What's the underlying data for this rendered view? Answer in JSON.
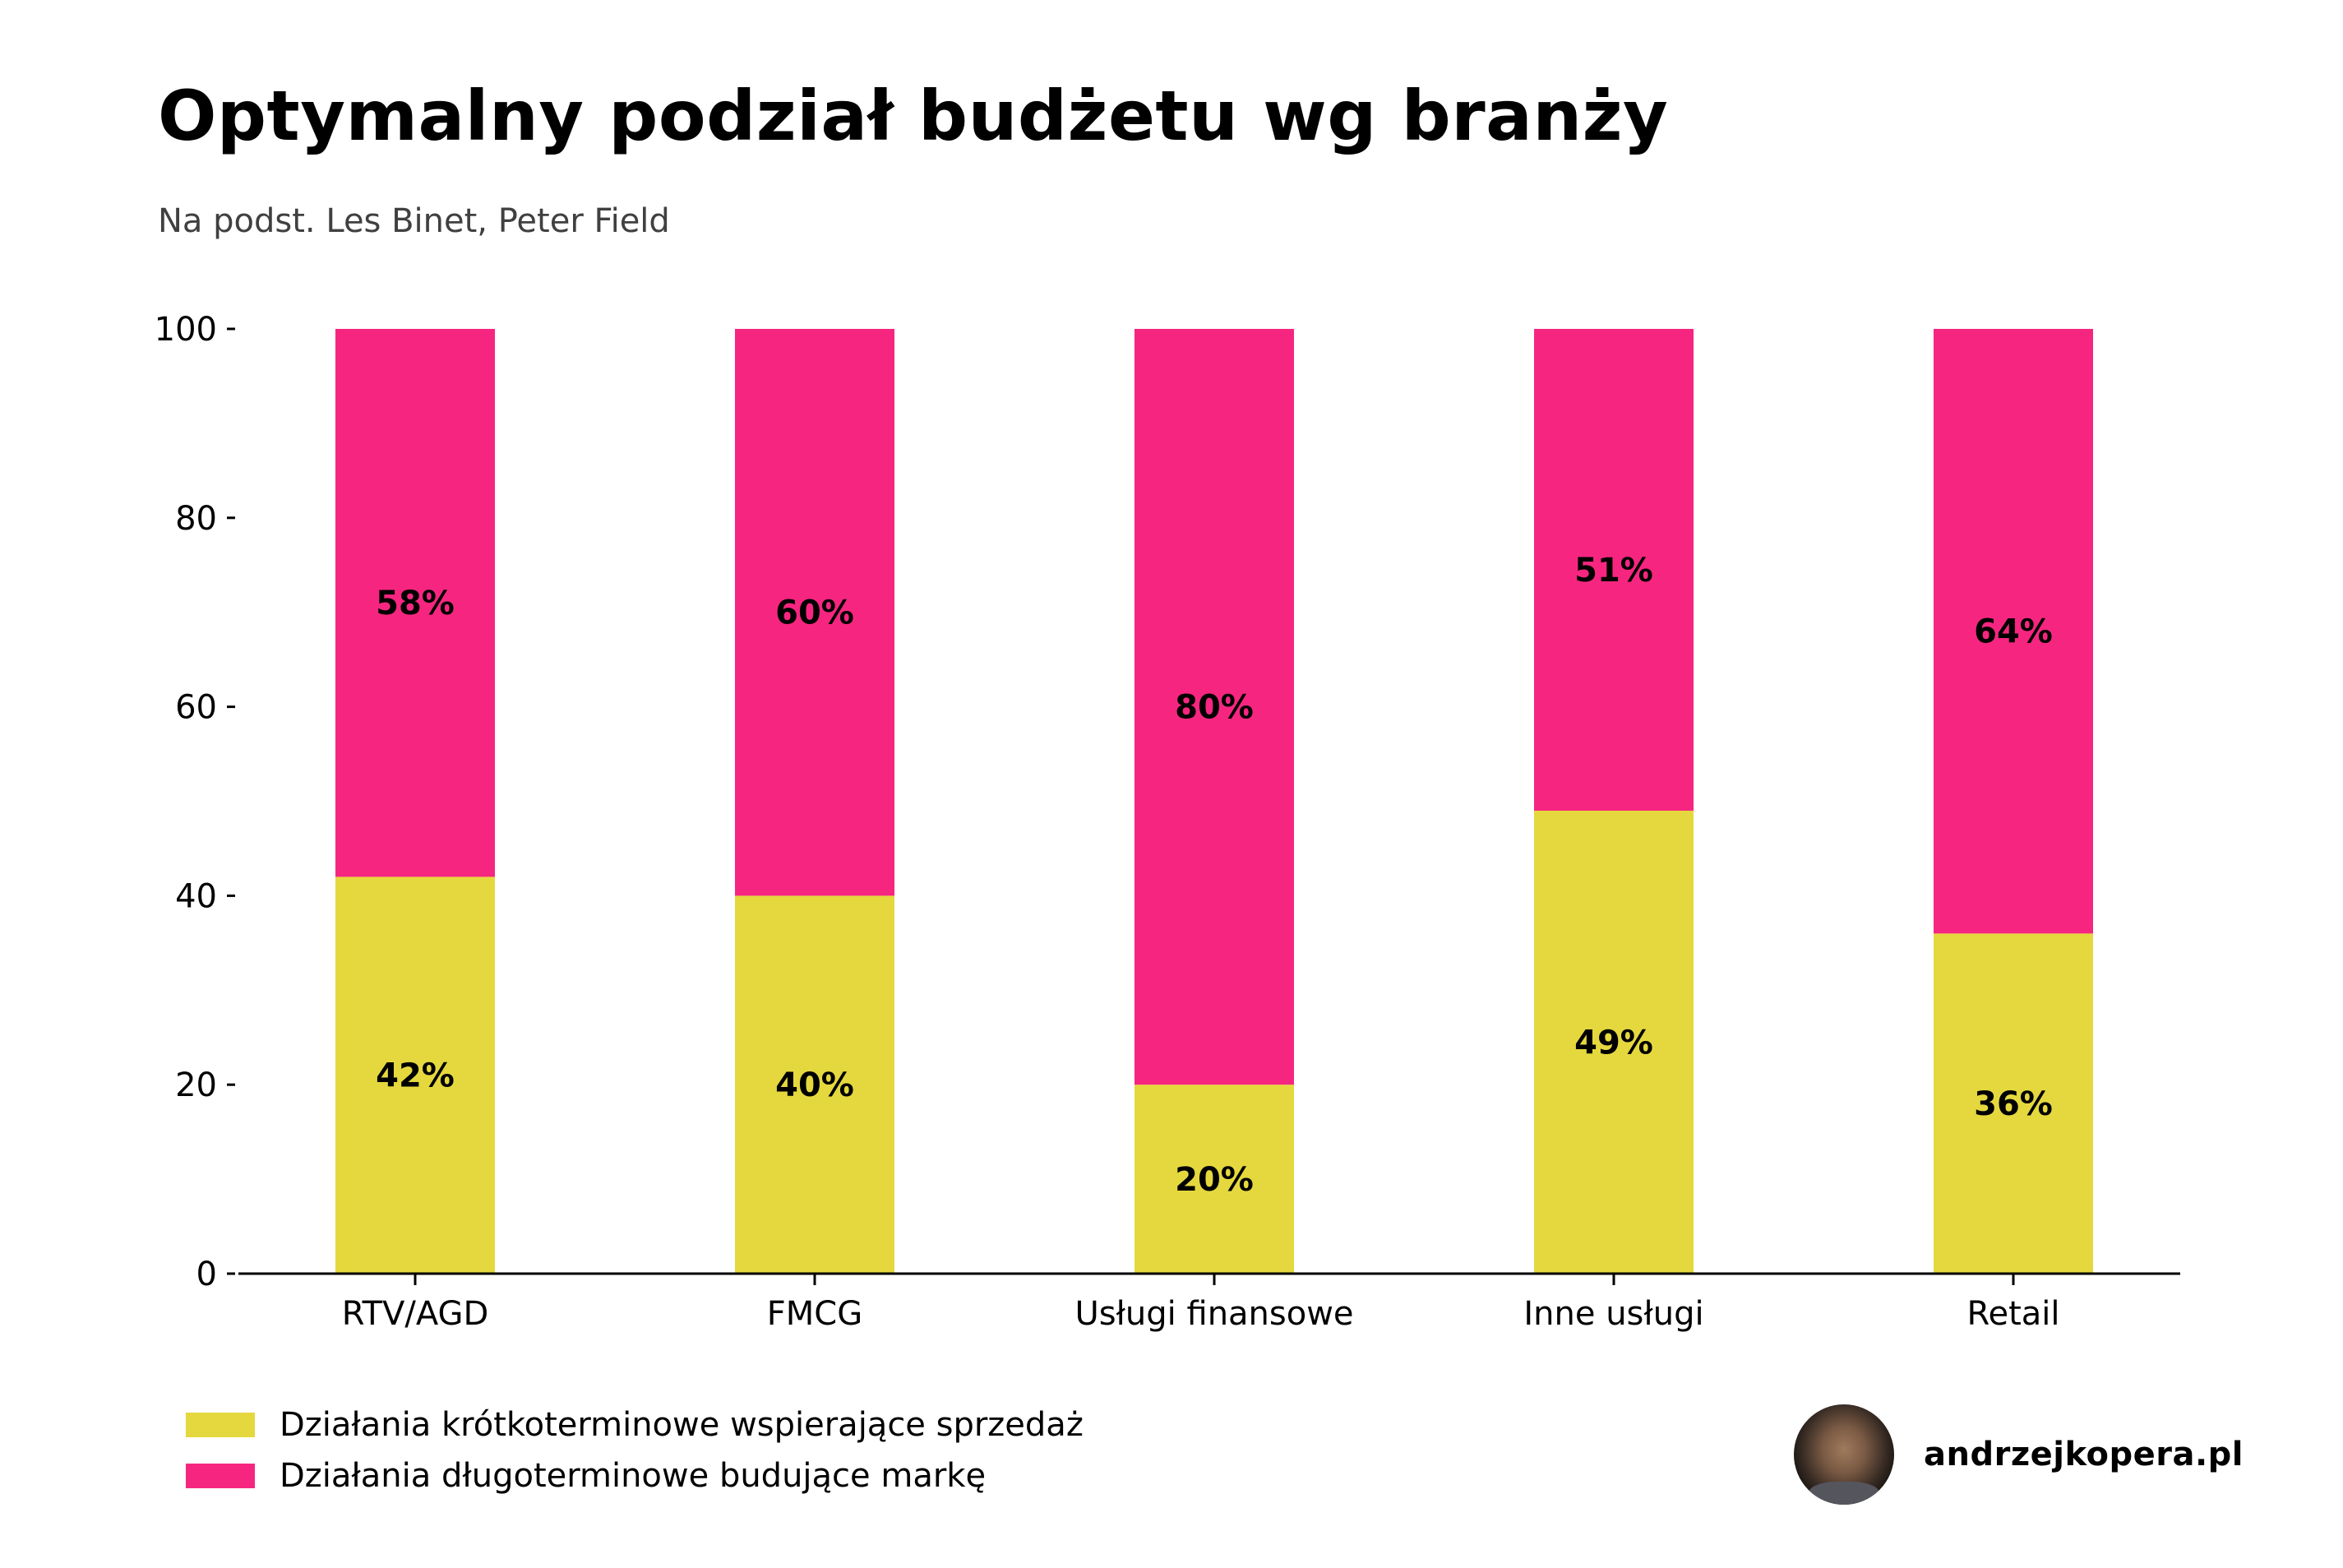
{
  "header": {
    "title": "Optymalny podział budżetu wg branży",
    "subtitle": "Na podst. Les Binet, Peter Field"
  },
  "colors": {
    "short_term": "#E5D83E",
    "long_term": "#F62680"
  },
  "legend": [
    {
      "label": "Działania krótkoterminowe wspierające sprzedaż",
      "series": "short_term"
    },
    {
      "label": "Działania długoterminowe budujące markę",
      "series": "long_term"
    }
  ],
  "brand": {
    "avatar_icon": "author-photo",
    "name": "andrzejkopera.pl"
  },
  "chart_data": {
    "type": "bar",
    "stacked": true,
    "title": "Optymalny podział budżetu wg branży",
    "subtitle": "Na podst. Les Binet, Peter Field",
    "xlabel": "",
    "ylabel": "",
    "ylim": [
      0,
      100
    ],
    "yticks": [
      0,
      20,
      40,
      60,
      80,
      100
    ],
    "grid": false,
    "legend_position": "bottom-left",
    "categories": [
      "RTV/AGD",
      "FMCG",
      "Usługi finansowe",
      "Inne usługi",
      "Retail"
    ],
    "series": [
      {
        "name": "Działania krótkoterminowe wspierające sprzedaż",
        "color": "#E5D83E",
        "values": [
          42,
          40,
          20,
          49,
          36
        ],
        "labels": [
          "42%",
          "40%",
          "20%",
          "49%",
          "36%"
        ]
      },
      {
        "name": "Działania długoterminowe budujące markę",
        "color": "#F62680",
        "values": [
          58,
          60,
          80,
          51,
          64
        ],
        "labels": [
          "58%",
          "60%",
          "80%",
          "51%",
          "64%"
        ]
      }
    ]
  }
}
